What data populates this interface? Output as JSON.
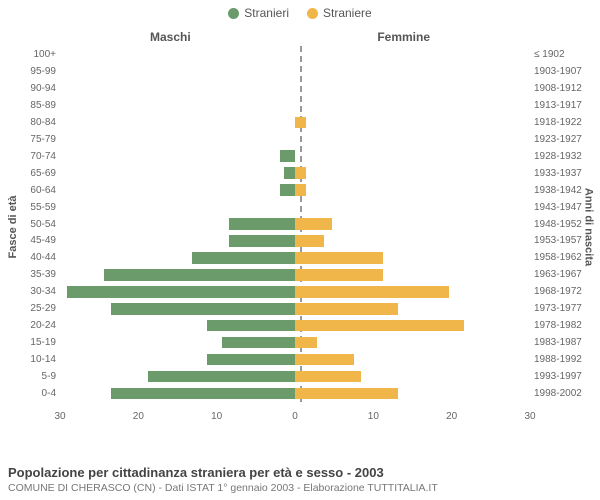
{
  "chart": {
    "type": "population-pyramid",
    "legend": [
      {
        "label": "Stranieri",
        "color": "#6b9a6b"
      },
      {
        "label": "Straniere",
        "color": "#f0b64a"
      }
    ],
    "side_titles": {
      "left": "Maschi",
      "right": "Femmine"
    },
    "y_axis_left_label": "Fasce di età",
    "y_axis_right_label": "Anni di nascita",
    "bar_colors": {
      "male": "#6b9a6b",
      "female": "#f0b64a"
    },
    "background_color": "#ffffff",
    "center_line_color": "#999999",
    "label_color": "#666666",
    "title_color": "#444444",
    "label_fontsize": 10,
    "side_title_fontsize": 12,
    "max_value": 32,
    "x_ticks_left": [
      "30",
      "20",
      "10",
      "0"
    ],
    "x_ticks_right": [
      "0",
      "10",
      "20",
      "30"
    ],
    "rows": [
      {
        "age": "100+",
        "birth": "≤ 1902",
        "m": 0,
        "f": 0
      },
      {
        "age": "95-99",
        "birth": "1903-1907",
        "m": 0,
        "f": 0
      },
      {
        "age": "90-94",
        "birth": "1908-1912",
        "m": 0,
        "f": 0
      },
      {
        "age": "85-89",
        "birth": "1913-1917",
        "m": 0,
        "f": 0
      },
      {
        "age": "80-84",
        "birth": "1918-1922",
        "m": 0,
        "f": 1.5
      },
      {
        "age": "75-79",
        "birth": "1923-1927",
        "m": 0,
        "f": 0
      },
      {
        "age": "70-74",
        "birth": "1928-1932",
        "m": 2,
        "f": 0
      },
      {
        "age": "65-69",
        "birth": "1933-1937",
        "m": 1.5,
        "f": 1.5
      },
      {
        "age": "60-64",
        "birth": "1938-1942",
        "m": 2,
        "f": 1.5
      },
      {
        "age": "55-59",
        "birth": "1943-1947",
        "m": 0,
        "f": 0
      },
      {
        "age": "50-54",
        "birth": "1948-1952",
        "m": 9,
        "f": 5
      },
      {
        "age": "45-49",
        "birth": "1953-1957",
        "m": 9,
        "f": 4
      },
      {
        "age": "40-44",
        "birth": "1958-1962",
        "m": 14,
        "f": 12
      },
      {
        "age": "35-39",
        "birth": "1963-1967",
        "m": 26,
        "f": 12
      },
      {
        "age": "30-34",
        "birth": "1968-1972",
        "m": 31,
        "f": 21
      },
      {
        "age": "25-29",
        "birth": "1973-1977",
        "m": 25,
        "f": 14
      },
      {
        "age": "20-24",
        "birth": "1978-1982",
        "m": 12,
        "f": 23
      },
      {
        "age": "15-19",
        "birth": "1983-1987",
        "m": 10,
        "f": 3
      },
      {
        "age": "10-14",
        "birth": "1988-1992",
        "m": 12,
        "f": 8
      },
      {
        "age": "5-9",
        "birth": "1993-1997",
        "m": 20,
        "f": 9
      },
      {
        "age": "0-4",
        "birth": "1998-2002",
        "m": 25,
        "f": 14
      }
    ],
    "footer_title": "Popolazione per cittadinanza straniera per età e sesso - 2003",
    "footer_sub": "COMUNE DI CHERASCO (CN) - Dati ISTAT 1° gennaio 2003 - Elaborazione TUTTITALIA.IT"
  }
}
